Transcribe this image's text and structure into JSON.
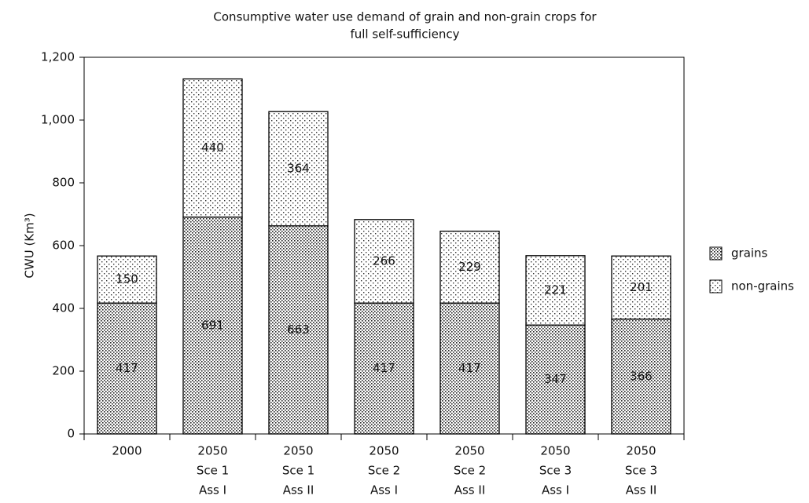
{
  "chart_data": {
    "type": "stacked_bar",
    "title": [
      "Consumptive water use demand of grain and non-grain crops for",
      "full self-sufficiency"
    ],
    "y_label": "CWU (Km³)",
    "categories": [
      [
        "2000"
      ],
      [
        "2050",
        "Sce 1",
        "Ass I"
      ],
      [
        "2050",
        "Sce 1",
        "Ass II"
      ],
      [
        "2050",
        "Sce 2",
        "Ass I"
      ],
      [
        "2050",
        "Sce 2",
        "Ass II"
      ],
      [
        "2050",
        "Sce 3",
        "Ass I"
      ],
      [
        "2050",
        "Sce 3",
        "Ass II"
      ]
    ],
    "series": [
      {
        "name": "grains",
        "color": "#000000",
        "pattern": "dense-dots",
        "values": [
          417,
          691,
          663,
          417,
          417,
          347,
          366
        ]
      },
      {
        "name": "non-grains",
        "color": "#000000",
        "pattern": "sparse-dots",
        "values": [
          150,
          440,
          364,
          266,
          229,
          221,
          201
        ]
      }
    ],
    "ylim": [
      0,
      1200
    ],
    "yticks": [
      0,
      200,
      400,
      600,
      800,
      {
        "value": 1000,
        "label": "1,000"
      },
      {
        "value": 1200,
        "label": "1,200"
      }
    ],
    "legend": "right"
  }
}
